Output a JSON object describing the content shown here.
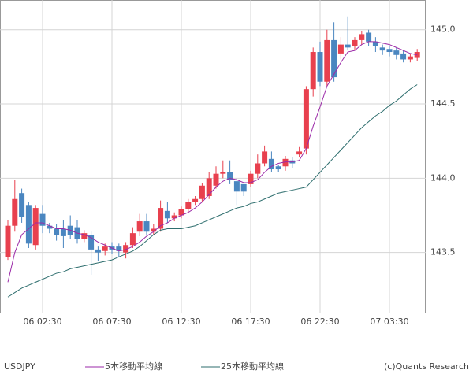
{
  "chart_data": {
    "type": "candlestick",
    "categories": [
      null,
      null,
      null,
      null,
      null,
      "06 02:30",
      null,
      null,
      null,
      null,
      null,
      null,
      null,
      null,
      null,
      "06 07:30",
      null,
      null,
      null,
      null,
      null,
      null,
      null,
      null,
      null,
      "06 12:30",
      null,
      null,
      null,
      null,
      null,
      null,
      null,
      null,
      null,
      "06 17:30",
      null,
      null,
      null,
      null,
      null,
      null,
      null,
      null,
      null,
      "06 22:30",
      null,
      null,
      null,
      null,
      null,
      null,
      null,
      null,
      null,
      "07 03:30",
      null,
      null,
      null,
      null
    ],
    "candles": {
      "name": "USDJPY",
      "up_color": "#e8404e",
      "down_color": "#4a86c0",
      "open": [
        143.47,
        143.68,
        143.9,
        143.82,
        143.55,
        143.76,
        143.68,
        143.66,
        143.66,
        143.68,
        143.67,
        143.59,
        143.62,
        143.52,
        143.51,
        143.54,
        143.54,
        143.5,
        143.55,
        143.64,
        143.71,
        143.64,
        143.66,
        143.78,
        143.73,
        143.75,
        143.79,
        143.84,
        143.86,
        143.88,
        143.95,
        144.03,
        144.04,
        143.98,
        143.96,
        143.96,
        144.03,
        144.1,
        144.13,
        144.08,
        144.08,
        144.12,
        144.16,
        144.2,
        144.6,
        144.85,
        144.65,
        144.93,
        144.84,
        144.9,
        144.89,
        144.93,
        144.98,
        144.92,
        144.88,
        144.87,
        144.86,
        144.84,
        144.8,
        144.81
      ],
      "high": [
        143.72,
        143.99,
        143.93,
        143.84,
        143.82,
        143.82,
        143.7,
        143.69,
        143.72,
        143.75,
        143.72,
        143.65,
        143.64,
        143.54,
        143.56,
        143.57,
        143.56,
        143.57,
        143.67,
        143.76,
        143.76,
        143.69,
        143.85,
        143.84,
        143.77,
        143.81,
        143.86,
        143.88,
        143.97,
        144.04,
        144.08,
        144.12,
        144.12,
        144.0,
        143.94,
        144.05,
        144.16,
        144.22,
        144.18,
        144.09,
        144.15,
        144.14,
        144.21,
        144.62,
        144.88,
        144.92,
        145.0,
        145.05,
        144.95,
        145.09,
        144.95,
        144.99,
        145.0,
        144.95,
        144.9,
        144.89,
        144.88,
        144.86,
        144.84,
        144.87
      ],
      "low": [
        143.45,
        143.64,
        143.7,
        143.53,
        143.52,
        143.63,
        143.63,
        143.58,
        143.53,
        143.59,
        143.56,
        143.57,
        143.35,
        143.44,
        143.48,
        143.49,
        143.47,
        143.46,
        143.53,
        143.61,
        143.62,
        143.62,
        143.64,
        143.7,
        143.71,
        143.73,
        143.77,
        143.82,
        143.84,
        143.86,
        143.93,
        144.0,
        143.96,
        143.82,
        143.88,
        143.94,
        144.0,
        144.08,
        144.04,
        144.04,
        144.05,
        144.07,
        144.14,
        144.16,
        144.55,
        144.62,
        144.62,
        144.65,
        144.8,
        144.86,
        144.86,
        144.9,
        144.89,
        144.85,
        144.83,
        144.82,
        144.8,
        144.78,
        144.78,
        144.79
      ],
      "close": [
        143.68,
        143.86,
        143.74,
        143.56,
        143.8,
        143.68,
        143.66,
        143.62,
        143.61,
        143.62,
        143.59,
        143.63,
        143.52,
        143.5,
        143.54,
        143.52,
        143.51,
        143.55,
        143.63,
        143.71,
        143.64,
        143.66,
        143.8,
        143.73,
        143.75,
        143.79,
        143.84,
        143.86,
        143.95,
        144.0,
        144.03,
        144.04,
        143.99,
        143.91,
        143.91,
        144.03,
        144.1,
        144.18,
        144.06,
        144.06,
        144.13,
        144.1,
        144.18,
        144.6,
        144.85,
        144.65,
        144.93,
        144.68,
        144.9,
        144.88,
        144.93,
        144.97,
        144.92,
        144.89,
        144.86,
        144.85,
        144.83,
        144.8,
        144.82,
        144.85
      ]
    },
    "series": [
      {
        "name": "5本移動平均線",
        "color": "#9b2aa8",
        "values": [
          143.3,
          143.5,
          143.62,
          143.66,
          143.7,
          143.7,
          143.68,
          143.66,
          143.66,
          143.65,
          143.63,
          143.62,
          143.6,
          143.57,
          143.55,
          143.53,
          143.51,
          143.52,
          143.54,
          143.57,
          143.61,
          143.64,
          143.68,
          143.7,
          143.73,
          143.75,
          143.77,
          143.8,
          143.84,
          143.89,
          143.94,
          143.98,
          144.0,
          143.99,
          143.97,
          143.97,
          143.99,
          144.04,
          144.08,
          144.1,
          144.11,
          144.11,
          144.12,
          144.2,
          144.35,
          144.48,
          144.62,
          144.7,
          144.78,
          144.85,
          144.86,
          144.9,
          144.92,
          144.92,
          144.91,
          144.9,
          144.88,
          144.86,
          144.84,
          144.83
        ]
      },
      {
        "name": "25本移動平均線",
        "color": "#2e6e6e",
        "values": [
          143.2,
          143.23,
          143.26,
          143.28,
          143.3,
          143.32,
          143.34,
          143.36,
          143.37,
          143.39,
          143.4,
          143.41,
          143.42,
          143.43,
          143.44,
          143.45,
          143.47,
          143.49,
          143.51,
          143.54,
          143.58,
          143.62,
          143.65,
          143.66,
          143.66,
          143.66,
          143.67,
          143.68,
          143.7,
          143.72,
          143.74,
          143.76,
          143.78,
          143.8,
          143.81,
          143.83,
          143.84,
          143.86,
          143.88,
          143.9,
          143.91,
          143.92,
          143.93,
          143.94,
          143.99,
          144.04,
          144.09,
          144.14,
          144.19,
          144.24,
          144.29,
          144.34,
          144.38,
          144.42,
          144.45,
          144.49,
          144.52,
          144.56,
          144.6,
          144.63
        ]
      }
    ],
    "ylim": [
      143.09,
      145.2
    ],
    "yticks": [
      143.5,
      {
        "value": 144,
        "label": "144.0"
      },
      144.5,
      {
        "value": 145,
        "label": "145.0"
      }
    ],
    "grid": true,
    "copyright": "(c)Quants Research"
  }
}
